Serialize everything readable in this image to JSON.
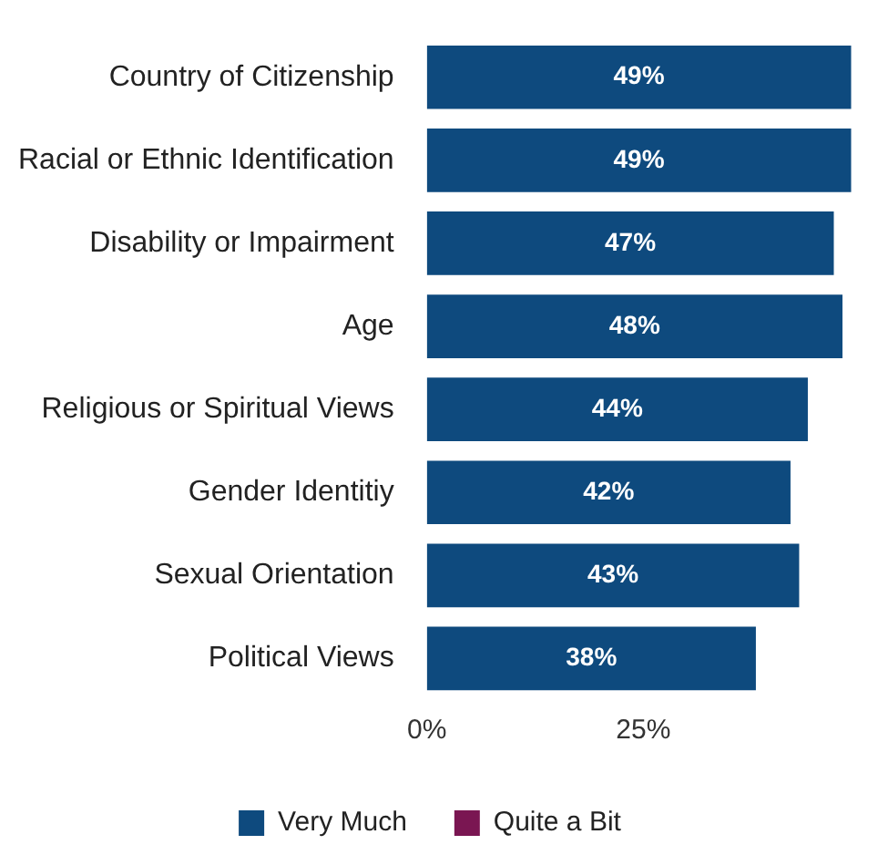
{
  "chart_data": {
    "type": "bar",
    "orientation": "horizontal",
    "stacked": true,
    "categories": [
      "Country of Citizenship",
      "Racial or Ethnic Identification",
      "Disability or Impairment",
      "Age",
      "Religious or Spiritual Views",
      "Gender Identitiy",
      "Sexual Orientation",
      "Political Views"
    ],
    "series": [
      {
        "name": "Very Much",
        "color": "#0e4a7e",
        "values": [
          49,
          49,
          47,
          48,
          44,
          42,
          43,
          38
        ],
        "value_labels": [
          "49%",
          "49%",
          "47%",
          "48%",
          "44%",
          "42%",
          "43%",
          "38%"
        ]
      },
      {
        "name": "Quite a Bit",
        "color": "#7a1652",
        "values": [
          null,
          null,
          null,
          null,
          null,
          null,
          null,
          null
        ]
      }
    ],
    "xlim": [
      0,
      50
    ],
    "xticks": [
      {
        "value": 0,
        "label": "0%"
      },
      {
        "value": 25,
        "label": "25%"
      }
    ],
    "grid": false,
    "legend": "bottom"
  }
}
